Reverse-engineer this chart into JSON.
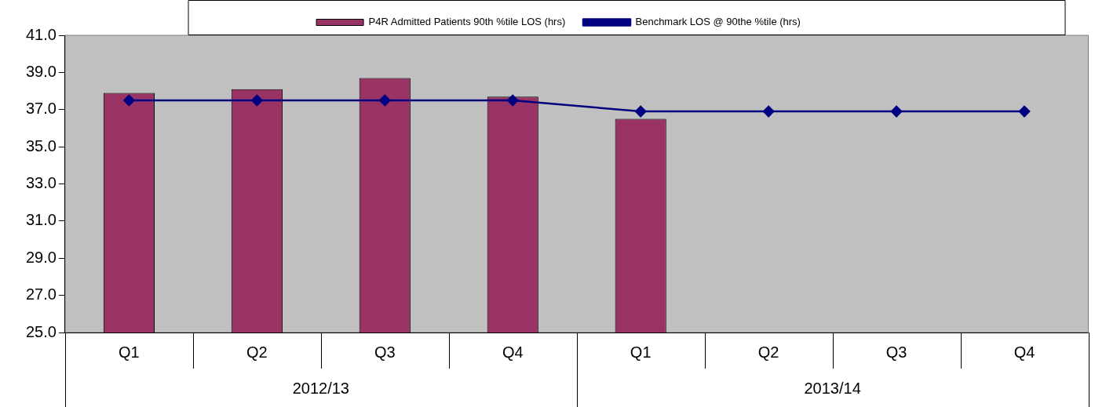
{
  "chart_data": {
    "type": "bar",
    "categories": [
      "Q1",
      "Q2",
      "Q3",
      "Q4",
      "Q1",
      "Q2",
      "Q3",
      "Q4"
    ],
    "series": [
      {
        "name": "P4R Admitted Patients 90th %tile LOS (hrs)",
        "color": "#993366",
        "values": [
          37.9,
          38.1,
          38.7,
          37.7,
          36.5,
          null,
          null,
          null
        ]
      },
      {
        "name": "Benchmark LOS @ 90the %tile (hrs)",
        "type": "line",
        "color": "#000080",
        "values": [
          37.5,
          37.5,
          37.5,
          37.5,
          36.9,
          36.9,
          36.9,
          36.9
        ]
      }
    ],
    "annotations": [
      "2012/13",
      "2013/14"
    ],
    "ylim": [
      25,
      41
    ],
    "yticks": [
      {
        "value": 25,
        "label": "25.0"
      },
      {
        "value": 27,
        "label": "27.0"
      },
      {
        "value": 29,
        "label": "29.0"
      },
      {
        "value": 31,
        "label": "31.0"
      },
      {
        "value": 33,
        "label": "33.0"
      },
      {
        "value": 35,
        "label": "35.0"
      },
      {
        "value": 37,
        "label": "37.0"
      },
      {
        "value": 39,
        "label": "39.0"
      },
      {
        "value": 41,
        "label": "41.0"
      }
    ],
    "grid": false,
    "legend": "top",
    "marker": "diamond",
    "line_style": "solid"
  }
}
